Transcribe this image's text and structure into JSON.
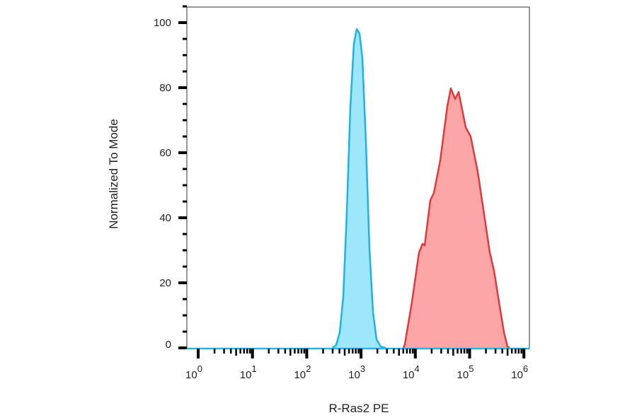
{
  "chart_data": {
    "type": "area",
    "title": "",
    "xlabel": "R-Ras2 PE",
    "ylabel": "Normalized To Mode",
    "x_scale": "log",
    "xlim": [
      0.7,
      1260000
    ],
    "ylim": [
      0,
      105
    ],
    "x_ticks": [
      {
        "base": "10",
        "exp": "0",
        "value": 1
      },
      {
        "base": "10",
        "exp": "1",
        "value": 10
      },
      {
        "base": "10",
        "exp": "2",
        "value": 100
      },
      {
        "base": "10",
        "exp": "3",
        "value": 1000
      },
      {
        "base": "10",
        "exp": "4",
        "value": 10000
      },
      {
        "base": "10",
        "exp": "5",
        "value": 100000
      },
      {
        "base": "10",
        "exp": "6",
        "value": 1000000
      }
    ],
    "y_ticks": [
      "0",
      "20",
      "40",
      "60",
      "80",
      "100"
    ],
    "grid": false,
    "legend": "none",
    "series": [
      {
        "color_fill": "#9ee7fb",
        "color_line": "#1db3e6",
        "x": [
          300,
          349,
          405,
          471,
          547,
          636,
          739,
          832,
          939,
          1059,
          1231,
          1429,
          1661,
          1931,
          2312,
          2851
        ],
        "y": [
          0,
          0.9,
          4.8,
          15.7,
          41.7,
          74,
          93.5,
          98,
          96.7,
          89,
          63,
          30.4,
          11,
          2.6,
          0.4,
          0
        ]
      },
      {
        "color_fill": "#fca6a8",
        "color_line": "#e03a3c",
        "x": [
          6040,
          6410,
          8650,
          11700,
          13580,
          14860,
          18900,
          21970,
          28770,
          38830,
          45150,
          54060,
          62830,
          84790,
          104600,
          141200,
          190600,
          235300,
          281800,
          347700,
          428900,
          498800,
          545500
        ],
        "y": [
          0,
          1.1,
          14.1,
          29.3,
          32.0,
          31.5,
          45.4,
          47.6,
          57.6,
          74.3,
          79.8,
          76.5,
          78.7,
          67.8,
          65.0,
          54.1,
          39.6,
          29.3,
          23.7,
          14.1,
          4.8,
          0.4,
          0
        ]
      }
    ]
  }
}
